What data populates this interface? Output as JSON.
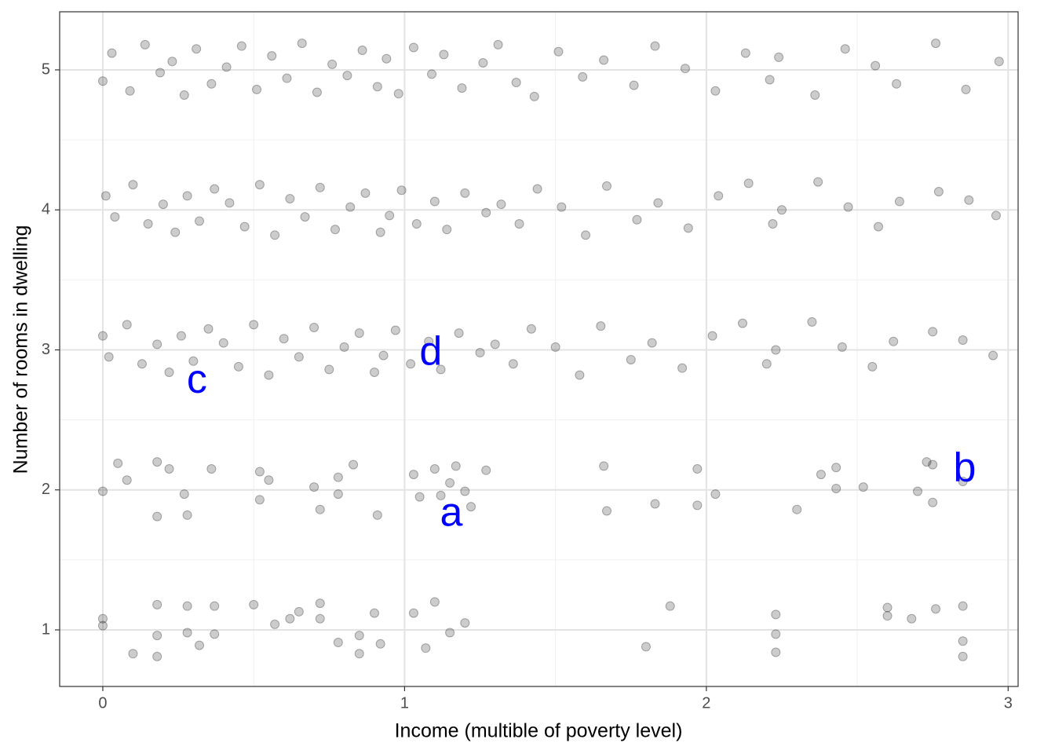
{
  "chart_data": {
    "type": "scatter",
    "x_label": "Income (multible of poverty level)",
    "y_label": "Number of rooms in dwelling",
    "xlim": [
      -0.143,
      3.033
    ],
    "ylim": [
      0.596,
      5.415
    ],
    "xticks": [
      0,
      1,
      2,
      3
    ],
    "yticks": [
      1,
      2,
      3,
      4,
      5
    ],
    "minor_xticks": [
      0.5,
      1.5,
      2.5
    ],
    "minor_yticks": [
      1.5,
      2.5,
      3.5,
      4.5
    ],
    "grid": true,
    "series": [
      {
        "color": "#000000",
        "opacity": 0.2,
        "x": [
          0,
          0,
          0.1,
          0.18,
          0.18,
          0.18,
          0.28,
          0.28,
          0.32,
          0.37,
          0.37,
          0.5,
          0.57,
          0.62,
          0.65,
          0.72,
          0.72,
          0.78,
          0.85,
          0.85,
          0.9,
          0.92,
          1.03,
          1.07,
          1.1,
          1.15,
          1.2,
          1.8,
          1.88,
          2.23,
          2.23,
          2.23,
          2.6,
          2.6,
          2.68,
          2.76,
          2.85,
          2.85,
          2.85,
          0,
          0.05,
          0.08,
          0.18,
          0.18,
          0.22,
          0.27,
          0.28,
          0.36,
          0.52,
          0.55,
          0.52,
          0.7,
          0.72,
          0.78,
          0.78,
          0.83,
          0.91,
          1.03,
          1.05,
          1.1,
          1.12,
          1.15,
          1.17,
          1.2,
          1.22,
          1.27,
          1.66,
          1.67,
          1.83,
          1.97,
          1.97,
          2.03,
          2.3,
          2.38,
          2.43,
          2.43,
          2.52,
          2.7,
          2.73,
          2.75,
          2.75,
          2.85,
          0,
          0.02,
          0.08,
          0.13,
          0.18,
          0.22,
          0.26,
          0.3,
          0.35,
          0.4,
          0.45,
          0.5,
          0.55,
          0.6,
          0.65,
          0.7,
          0.75,
          0.8,
          0.85,
          0.9,
          0.93,
          0.97,
          1.02,
          1.08,
          1.12,
          1.18,
          1.25,
          1.3,
          1.36,
          1.42,
          1.5,
          1.58,
          1.65,
          1.75,
          1.82,
          1.92,
          2.02,
          2.12,
          2.2,
          2.23,
          2.35,
          2.45,
          2.55,
          2.62,
          2.75,
          2.85,
          2.95,
          0.01,
          0.04,
          0.1,
          0.15,
          0.2,
          0.24,
          0.28,
          0.32,
          0.37,
          0.42,
          0.47,
          0.52,
          0.57,
          0.62,
          0.67,
          0.72,
          0.77,
          0.82,
          0.87,
          0.92,
          0.95,
          0.99,
          1.04,
          1.1,
          1.14,
          1.2,
          1.27,
          1.32,
          1.38,
          1.44,
          1.52,
          1.6,
          1.67,
          1.77,
          1.84,
          1.94,
          2.04,
          2.14,
          2.22,
          2.25,
          2.37,
          2.47,
          2.57,
          2.64,
          2.77,
          2.87,
          2.96,
          0.0,
          0.03,
          0.09,
          0.14,
          0.19,
          0.23,
          0.27,
          0.31,
          0.36,
          0.41,
          0.46,
          0.51,
          0.56,
          0.61,
          0.66,
          0.71,
          0.76,
          0.81,
          0.86,
          0.91,
          0.94,
          0.98,
          1.03,
          1.09,
          1.13,
          1.19,
          1.26,
          1.31,
          1.37,
          1.43,
          1.51,
          1.59,
          1.66,
          1.76,
          1.83,
          1.93,
          2.03,
          2.13,
          2.21,
          2.24,
          2.36,
          2.46,
          2.56,
          2.63,
          2.76,
          2.86,
          2.97
        ],
        "values": [
          1.08,
          1.03,
          0.83,
          1.18,
          0.96,
          0.81,
          1.17,
          0.98,
          0.89,
          1.17,
          0.97,
          1.18,
          1.04,
          1.08,
          1.13,
          1.19,
          1.08,
          0.91,
          0.96,
          0.83,
          1.12,
          0.9,
          1.12,
          0.87,
          1.2,
          0.98,
          1.05,
          0.88,
          1.17,
          1.11,
          0.97,
          0.84,
          1.16,
          1.1,
          1.08,
          1.15,
          1.17,
          0.92,
          0.81,
          1.99,
          2.19,
          2.07,
          2.2,
          1.81,
          2.15,
          1.97,
          1.82,
          2.15,
          2.13,
          2.07,
          1.93,
          2.02,
          1.86,
          2.09,
          1.97,
          2.18,
          1.82,
          2.11,
          1.95,
          2.15,
          1.96,
          2.05,
          2.17,
          1.99,
          1.88,
          2.14,
          2.17,
          1.85,
          1.9,
          2.15,
          1.89,
          1.97,
          1.86,
          2.11,
          2.01,
          2.16,
          2.02,
          1.99,
          2.2,
          1.91,
          2.18,
          2.06,
          3.1,
          2.95,
          3.18,
          2.9,
          3.04,
          2.84,
          3.1,
          2.92,
          3.15,
          3.05,
          2.88,
          3.18,
          2.82,
          3.08,
          2.95,
          3.16,
          2.86,
          3.02,
          3.12,
          2.84,
          2.96,
          3.14,
          2.9,
          3.06,
          2.86,
          3.12,
          2.98,
          3.04,
          2.9,
          3.15,
          3.02,
          2.82,
          3.17,
          2.93,
          3.05,
          2.87,
          3.1,
          3.19,
          2.9,
          3.0,
          3.2,
          3.02,
          2.88,
          3.06,
          3.13,
          3.07,
          2.96,
          4.1,
          3.95,
          4.18,
          3.9,
          4.04,
          3.84,
          4.1,
          3.92,
          4.15,
          4.05,
          3.88,
          4.18,
          3.82,
          4.08,
          3.95,
          4.16,
          3.86,
          4.02,
          4.12,
          3.84,
          3.96,
          4.14,
          3.9,
          4.06,
          3.86,
          4.12,
          3.98,
          4.04,
          3.9,
          4.15,
          4.02,
          3.82,
          4.17,
          3.93,
          4.05,
          3.87,
          4.1,
          4.19,
          3.9,
          4.0,
          4.2,
          4.02,
          3.88,
          4.06,
          4.13,
          4.07,
          3.96,
          4.92,
          5.12,
          4.85,
          5.18,
          4.98,
          5.06,
          4.82,
          5.15,
          4.9,
          5.02,
          5.17,
          4.86,
          5.1,
          4.94,
          5.19,
          4.84,
          5.04,
          4.96,
          5.14,
          4.88,
          5.08,
          4.83,
          5.16,
          4.97,
          5.11,
          4.87,
          5.05,
          5.18,
          4.91,
          4.81,
          5.13,
          4.95,
          5.07,
          4.89,
          5.17,
          5.01,
          4.85,
          5.12,
          4.93,
          5.09,
          4.82,
          5.15,
          5.03,
          4.9,
          5.19,
          4.86,
          5.06
        ]
      }
    ],
    "annotations": [
      {
        "text": "a",
        "x": 1.155,
        "y": 1.82,
        "color": "#0000ff"
      },
      {
        "text": "b",
        "x": 2.856,
        "y": 2.14,
        "color": "#0000ff"
      },
      {
        "text": "c",
        "x": 0.312,
        "y": 2.77,
        "color": "#0000ff"
      },
      {
        "text": "d",
        "x": 1.087,
        "y": 2.97,
        "color": "#0000ff"
      }
    ]
  }
}
